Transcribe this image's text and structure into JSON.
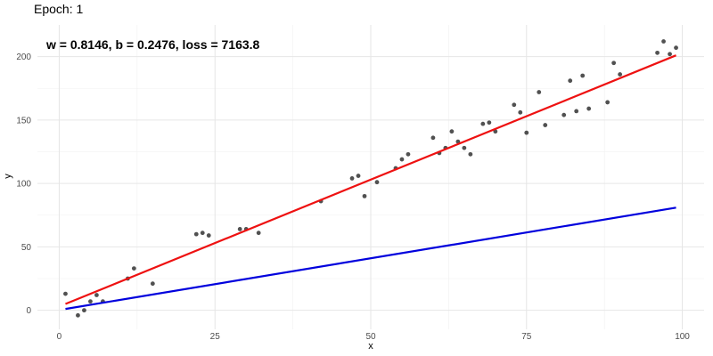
{
  "chart_data": {
    "type": "scatter",
    "title": "Epoch: 1",
    "annotation": "w = 0.8146, b = 0.2476, loss = 7163.8",
    "xlabel": "x",
    "ylabel": "y",
    "xlim": [
      -3.5,
      103.5
    ],
    "ylim": [
      -15,
      225
    ],
    "x_ticks": [
      0,
      25,
      50,
      75,
      100
    ],
    "y_ticks": [
      0,
      50,
      100,
      150,
      200
    ],
    "x_minor": [
      12.5,
      37.5,
      62.5,
      87.5
    ],
    "y_minor": [
      25,
      75,
      125,
      175
    ],
    "grid": true,
    "point_color": "#333333",
    "series": [
      {
        "type": "scatter",
        "x": [
          1,
          3,
          4,
          5,
          6,
          7,
          11,
          12,
          15,
          22,
          23,
          24,
          29,
          30,
          32,
          42,
          47,
          48,
          49,
          51,
          54,
          55,
          56,
          60,
          61,
          62,
          63,
          64,
          65,
          66,
          68,
          69,
          70,
          73,
          74,
          75,
          77,
          78,
          81,
          82,
          83,
          84,
          85,
          88,
          89,
          90,
          96,
          97,
          98,
          99
        ],
        "y": [
          13,
          -4,
          0,
          7,
          12,
          7,
          25,
          33,
          21,
          60,
          61,
          59,
          64,
          64,
          61,
          86,
          104,
          106,
          90,
          101,
          112,
          119,
          123,
          136,
          124,
          128,
          141,
          133,
          128,
          123,
          147,
          148,
          141,
          162,
          156,
          140,
          172,
          146,
          154,
          181,
          157,
          185,
          159,
          164,
          195,
          186,
          203,
          212,
          202,
          207
        ]
      },
      {
        "type": "line",
        "color": "#ee1111",
        "x": [
          1,
          99
        ],
        "y": [
          5,
          201
        ]
      },
      {
        "type": "line",
        "color": "#0000dd",
        "x": [
          1,
          99
        ],
        "y": [
          1.06,
          80.9
        ]
      }
    ]
  }
}
